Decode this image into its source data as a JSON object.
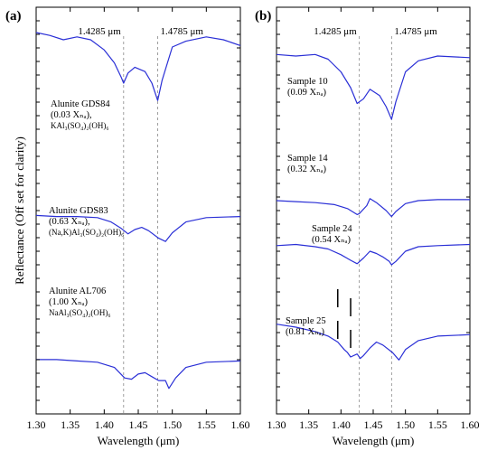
{
  "chart_data": [
    {
      "type": "line",
      "panel": "(a)",
      "xlabel": "Wavelength (μm)",
      "ylabel": "Reflectance (Off set for clarity)",
      "xlim": [
        1.3,
        1.6
      ],
      "x_ticks": [
        "1.30",
        "1.35",
        "1.40",
        "1.45",
        "1.50",
        "1.55",
        "1.60"
      ],
      "reference_lines": [
        {
          "x": 1.4285,
          "label": "1.4285 μm"
        },
        {
          "x": 1.4785,
          "label": "1.4785 μm"
        }
      ],
      "series": [
        {
          "label_lines": [
            "Alunite GDS84",
            "(0.03 Xₙₐ),",
            "KAl₃(SO₄)₂(OH)₆"
          ],
          "points": [
            [
              1.3,
              0.95
            ],
            [
              1.32,
              0.93
            ],
            [
              1.34,
              0.9
            ],
            [
              1.36,
              0.92
            ],
            [
              1.38,
              0.9
            ],
            [
              1.4,
              0.83
            ],
            [
              1.415,
              0.74
            ],
            [
              1.425,
              0.64
            ],
            [
              1.4285,
              0.6
            ],
            [
              1.435,
              0.67
            ],
            [
              1.445,
              0.71
            ],
            [
              1.46,
              0.68
            ],
            [
              1.47,
              0.6
            ],
            [
              1.4785,
              0.48
            ],
            [
              1.485,
              0.62
            ],
            [
              1.5,
              0.85
            ],
            [
              1.52,
              0.89
            ],
            [
              1.55,
              0.92
            ],
            [
              1.575,
              0.9
            ],
            [
              1.6,
              0.86
            ]
          ]
        },
        {
          "label_lines": [
            "Alunite GDS83",
            "(0.63 Xₙₐ),",
            "(Na,K)Al₃(SO₄)₂(OH)₆"
          ],
          "points": [
            [
              1.3,
              0.58
            ],
            [
              1.33,
              0.57
            ],
            [
              1.36,
              0.57
            ],
            [
              1.39,
              0.56
            ],
            [
              1.41,
              0.52
            ],
            [
              1.425,
              0.46
            ],
            [
              1.435,
              0.41
            ],
            [
              1.445,
              0.45
            ],
            [
              1.455,
              0.47
            ],
            [
              1.465,
              0.44
            ],
            [
              1.48,
              0.37
            ],
            [
              1.49,
              0.34
            ],
            [
              1.5,
              0.42
            ],
            [
              1.52,
              0.52
            ],
            [
              1.55,
              0.56
            ],
            [
              1.6,
              0.57
            ]
          ]
        },
        {
          "label_lines": [
            "Alunite AL706",
            "(1.00 Xₙₐ)",
            "NaAl₃(SO₄)₂(OH)₆"
          ],
          "points": [
            [
              1.3,
              0.38
            ],
            [
              1.33,
              0.38
            ],
            [
              1.36,
              0.37
            ],
            [
              1.39,
              0.36
            ],
            [
              1.415,
              0.32
            ],
            [
              1.43,
              0.24
            ],
            [
              1.44,
              0.23
            ],
            [
              1.45,
              0.27
            ],
            [
              1.46,
              0.28
            ],
            [
              1.47,
              0.25
            ],
            [
              1.48,
              0.22
            ],
            [
              1.49,
              0.22
            ],
            [
              1.495,
              0.16
            ],
            [
              1.505,
              0.24
            ],
            [
              1.52,
              0.32
            ],
            [
              1.55,
              0.36
            ],
            [
              1.6,
              0.37
            ]
          ]
        }
      ]
    },
    {
      "type": "line",
      "panel": "(b)",
      "xlabel": "Wavelength (μm)",
      "xlim": [
        1.3,
        1.6
      ],
      "x_ticks": [
        "1.30",
        "1.35",
        "1.40",
        "1.45",
        "1.50",
        "1.55",
        "1.60"
      ],
      "reference_lines": [
        {
          "x": 1.4285,
          "label": "1.4285 μm"
        },
        {
          "x": 1.4785,
          "label": "1.4785 μm"
        }
      ],
      "series": [
        {
          "label_lines": [
            "Sample 10",
            "(0.09 Xₙₐ)"
          ],
          "points": [
            [
              1.3,
              0.93
            ],
            [
              1.33,
              0.92
            ],
            [
              1.36,
              0.93
            ],
            [
              1.38,
              0.9
            ],
            [
              1.4,
              0.82
            ],
            [
              1.415,
              0.72
            ],
            [
              1.425,
              0.62
            ],
            [
              1.435,
              0.65
            ],
            [
              1.445,
              0.71
            ],
            [
              1.46,
              0.67
            ],
            [
              1.47,
              0.6
            ],
            [
              1.4785,
              0.52
            ],
            [
              1.485,
              0.63
            ],
            [
              1.5,
              0.82
            ],
            [
              1.52,
              0.89
            ],
            [
              1.55,
              0.92
            ],
            [
              1.6,
              0.91
            ]
          ]
        },
        {
          "label_lines": [
            "Sample 14",
            "(0.32 Xₙₐ)"
          ],
          "points": [
            [
              1.3,
              0.6
            ],
            [
              1.33,
              0.59
            ],
            [
              1.36,
              0.58
            ],
            [
              1.39,
              0.56
            ],
            [
              1.41,
              0.52
            ],
            [
              1.425,
              0.46
            ],
            [
              1.4285,
              0.47
            ],
            [
              1.44,
              0.55
            ],
            [
              1.445,
              0.62
            ],
            [
              1.455,
              0.58
            ],
            [
              1.47,
              0.5
            ],
            [
              1.4785,
              0.44
            ],
            [
              1.485,
              0.49
            ],
            [
              1.5,
              0.57
            ],
            [
              1.52,
              0.6
            ],
            [
              1.55,
              0.61
            ],
            [
              1.6,
              0.61
            ]
          ]
        },
        {
          "label_lines": [
            "Sample 24",
            "(0.54 Xₙₐ)"
          ],
          "points": [
            [
              1.3,
              0.53
            ],
            [
              1.33,
              0.54
            ],
            [
              1.36,
              0.52
            ],
            [
              1.38,
              0.5
            ],
            [
              1.4,
              0.45
            ],
            [
              1.415,
              0.4
            ],
            [
              1.425,
              0.37
            ],
            [
              1.435,
              0.42
            ],
            [
              1.445,
              0.48
            ],
            [
              1.455,
              0.46
            ],
            [
              1.465,
              0.43
            ],
            [
              1.475,
              0.39
            ],
            [
              1.4785,
              0.36
            ],
            [
              1.485,
              0.39
            ],
            [
              1.5,
              0.48
            ],
            [
              1.52,
              0.52
            ],
            [
              1.55,
              0.53
            ],
            [
              1.6,
              0.54
            ]
          ]
        },
        {
          "label_lines": [
            "Sample 25",
            "(0.81 Xₙₐ)"
          ],
          "points": [
            [
              1.3,
              0.42
            ],
            [
              1.33,
              0.4
            ],
            [
              1.36,
              0.37
            ],
            [
              1.38,
              0.34
            ],
            [
              1.395,
              0.3
            ],
            [
              1.405,
              0.25
            ],
            [
              1.41,
              0.23
            ],
            [
              1.415,
              0.2
            ],
            [
              1.425,
              0.22
            ],
            [
              1.43,
              0.19
            ],
            [
              1.435,
              0.21
            ],
            [
              1.445,
              0.26
            ],
            [
              1.455,
              0.3
            ],
            [
              1.465,
              0.28
            ],
            [
              1.48,
              0.23
            ],
            [
              1.49,
              0.18
            ],
            [
              1.5,
              0.25
            ],
            [
              1.52,
              0.31
            ],
            [
              1.55,
              0.34
            ],
            [
              1.6,
              0.35
            ]
          ]
        }
      ],
      "tick_marks_x": [
        1.395,
        1.415
      ]
    }
  ]
}
